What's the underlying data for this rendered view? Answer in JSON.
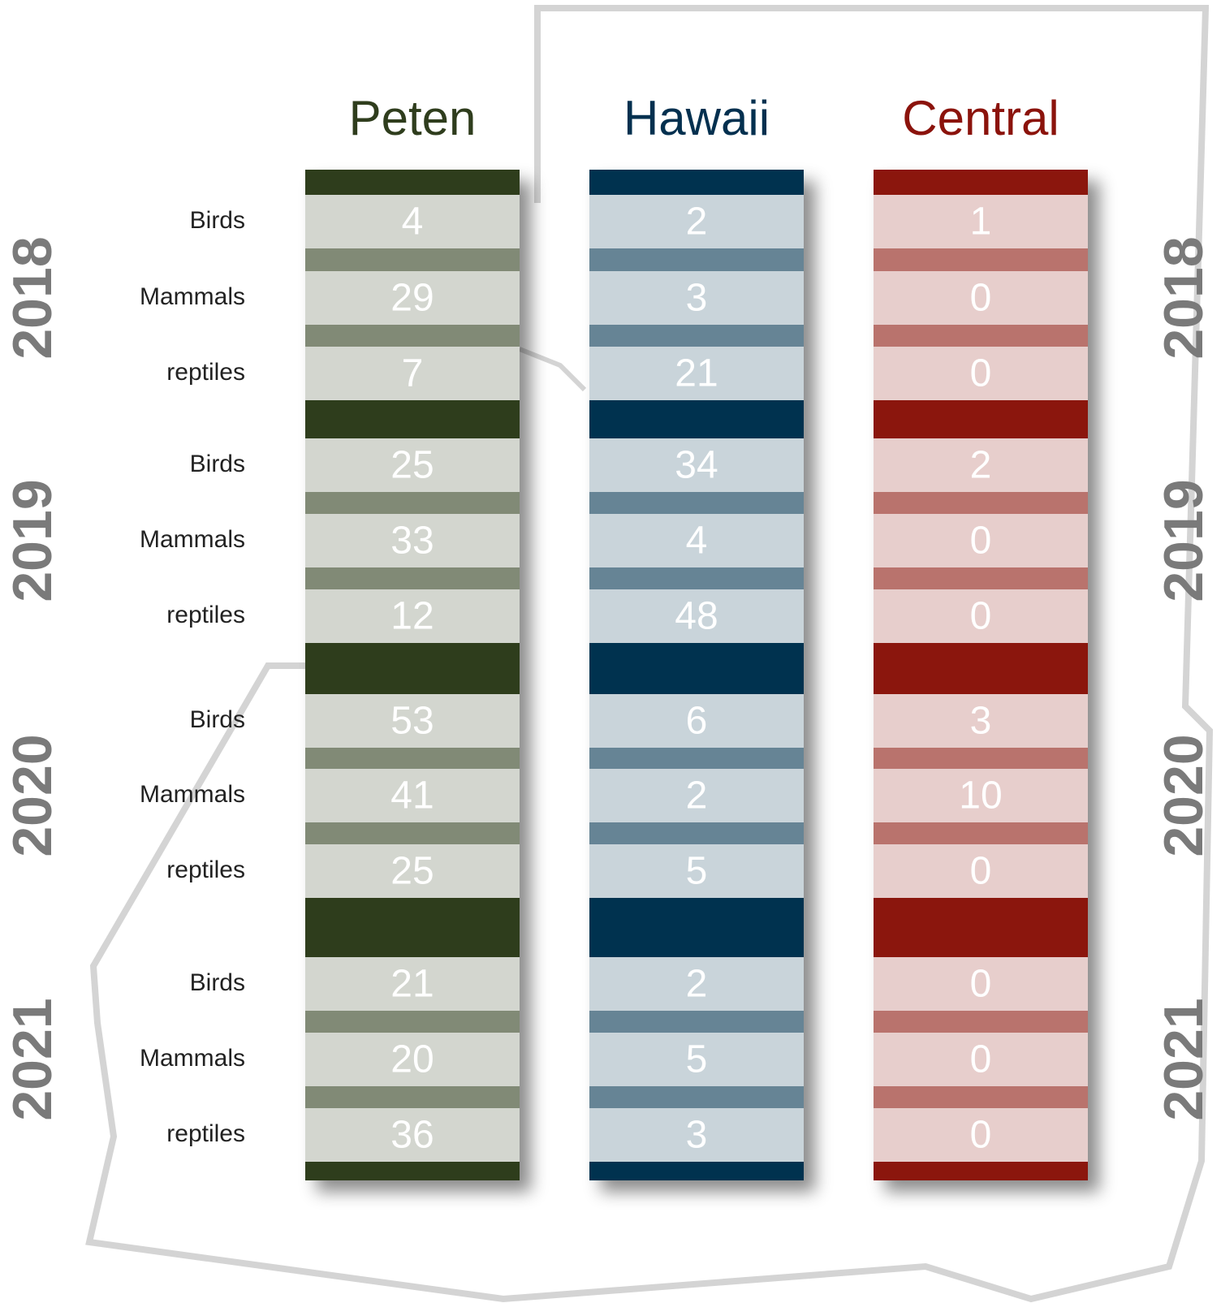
{
  "columns": [
    {
      "name": "Peten",
      "color": "#2f3d1d"
    },
    {
      "name": "Hawaii",
      "color": "#03304f"
    },
    {
      "name": "Central",
      "color": "#8b130c"
    }
  ],
  "years": [
    {
      "label": "2018",
      "rows": [
        {
          "label": "Birds",
          "values": [
            4,
            2,
            1
          ]
        },
        {
          "label": "Mammals",
          "values": [
            29,
            3,
            0
          ]
        },
        {
          "label": "reptiles",
          "values": [
            7,
            21,
            0
          ]
        }
      ]
    },
    {
      "label": "2019",
      "rows": [
        {
          "label": "Birds",
          "values": [
            25,
            34,
            2
          ]
        },
        {
          "label": "Mammals",
          "values": [
            33,
            4,
            0
          ]
        },
        {
          "label": "reptiles",
          "values": [
            12,
            48,
            0
          ]
        }
      ]
    },
    {
      "label": "2020",
      "rows": [
        {
          "label": "Birds",
          "values": [
            53,
            6,
            3
          ]
        },
        {
          "label": "Mammals",
          "values": [
            41,
            2,
            10
          ]
        },
        {
          "label": "reptiles",
          "values": [
            25,
            5,
            0
          ]
        }
      ]
    },
    {
      "label": "2021",
      "rows": [
        {
          "label": "Birds",
          "values": [
            21,
            2,
            0
          ]
        },
        {
          "label": "Mammals",
          "values": [
            20,
            5,
            0
          ]
        },
        {
          "label": "reptiles",
          "values": [
            36,
            3,
            0
          ]
        }
      ]
    }
  ]
}
